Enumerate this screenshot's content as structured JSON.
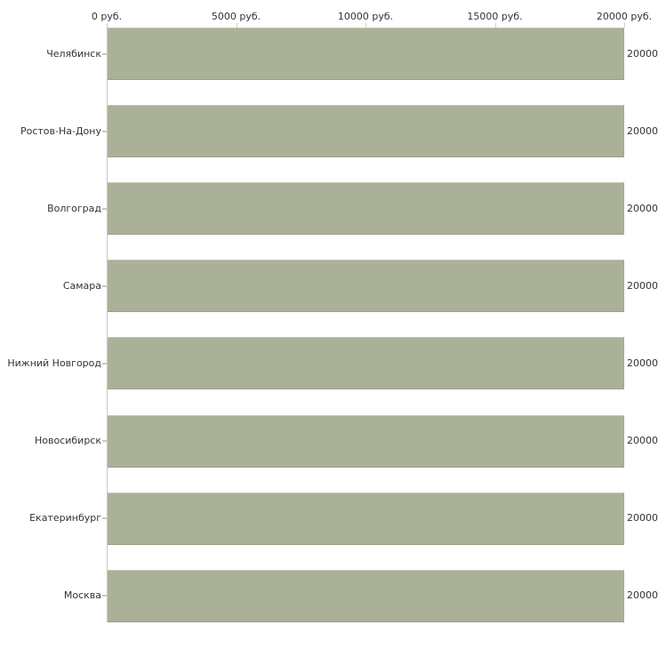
{
  "chart_data": {
    "type": "bar",
    "orientation": "horizontal",
    "title": "",
    "xlabel": "",
    "ylabel": "",
    "unit": "руб.",
    "categories": [
      "Челябинск",
      "Ростов-На-Дону",
      "Волгоград",
      "Самара",
      "Нижний Новгород",
      "Новосибирск",
      "Екатеринбург",
      "Москва"
    ],
    "values": [
      20000,
      20000,
      20000,
      20000,
      20000,
      20000,
      20000,
      20000
    ],
    "value_labels": [
      "20000",
      "20000",
      "20000",
      "20000",
      "20000",
      "20000",
      "20000",
      "20000"
    ],
    "x_tick_labels": [
      "0 руб.",
      "5000 руб.",
      "10000 руб.",
      "15000 руб.",
      "20000 руб."
    ],
    "x_tick_values": [
      0,
      5000,
      10000,
      15000,
      20000
    ],
    "xlim": [
      0,
      20000
    ],
    "grid": false,
    "legend": null,
    "colors": {
      "bar_fill": "#abb199",
      "axis_line": "#c8c8c8",
      "tick_mark": "#d2cfb8",
      "text": "#333333",
      "background": "#ffffff"
    }
  }
}
